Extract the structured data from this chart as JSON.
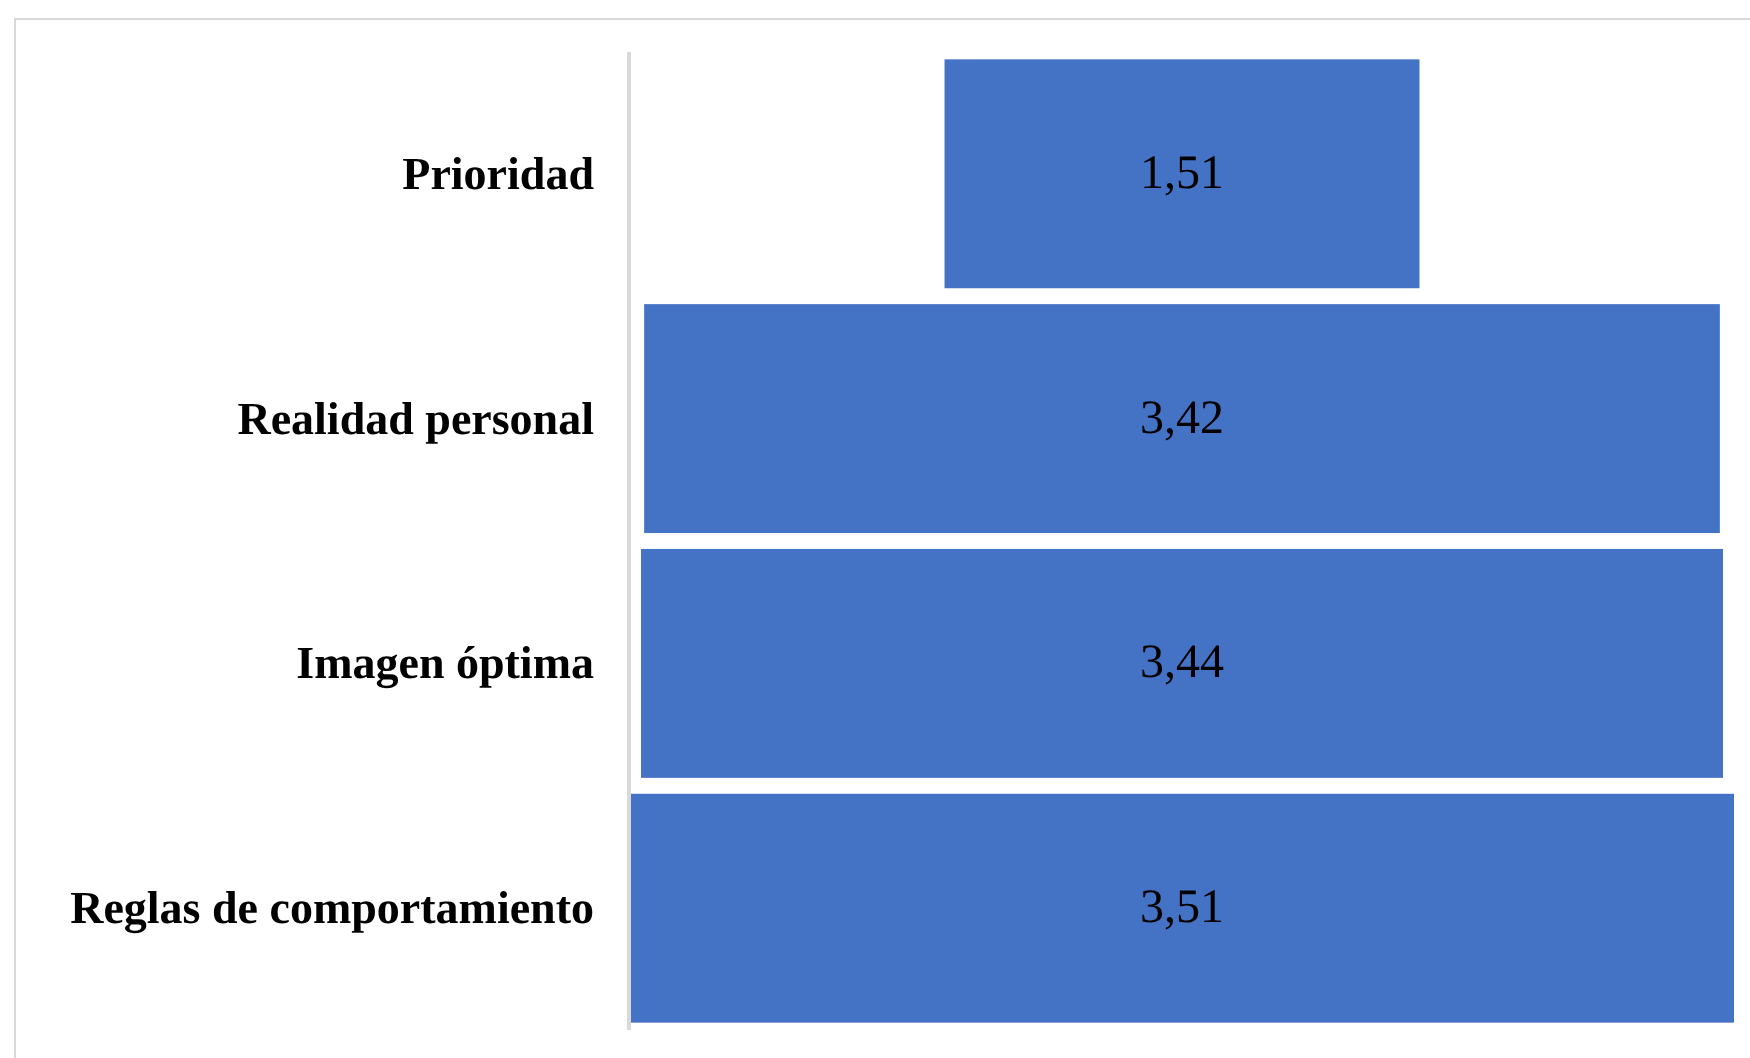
{
  "chart_data": {
    "type": "other",
    "categories": [
      "Prioridad",
      "Realidad personal",
      "Imagen óptima",
      "Reglas de comportamiento"
    ],
    "values": [
      1.51,
      3.42,
      3.44,
      3.51
    ],
    "value_labels": [
      "1,51",
      "3,42",
      "3,44",
      "3,51"
    ],
    "color": "#4472c4"
  }
}
